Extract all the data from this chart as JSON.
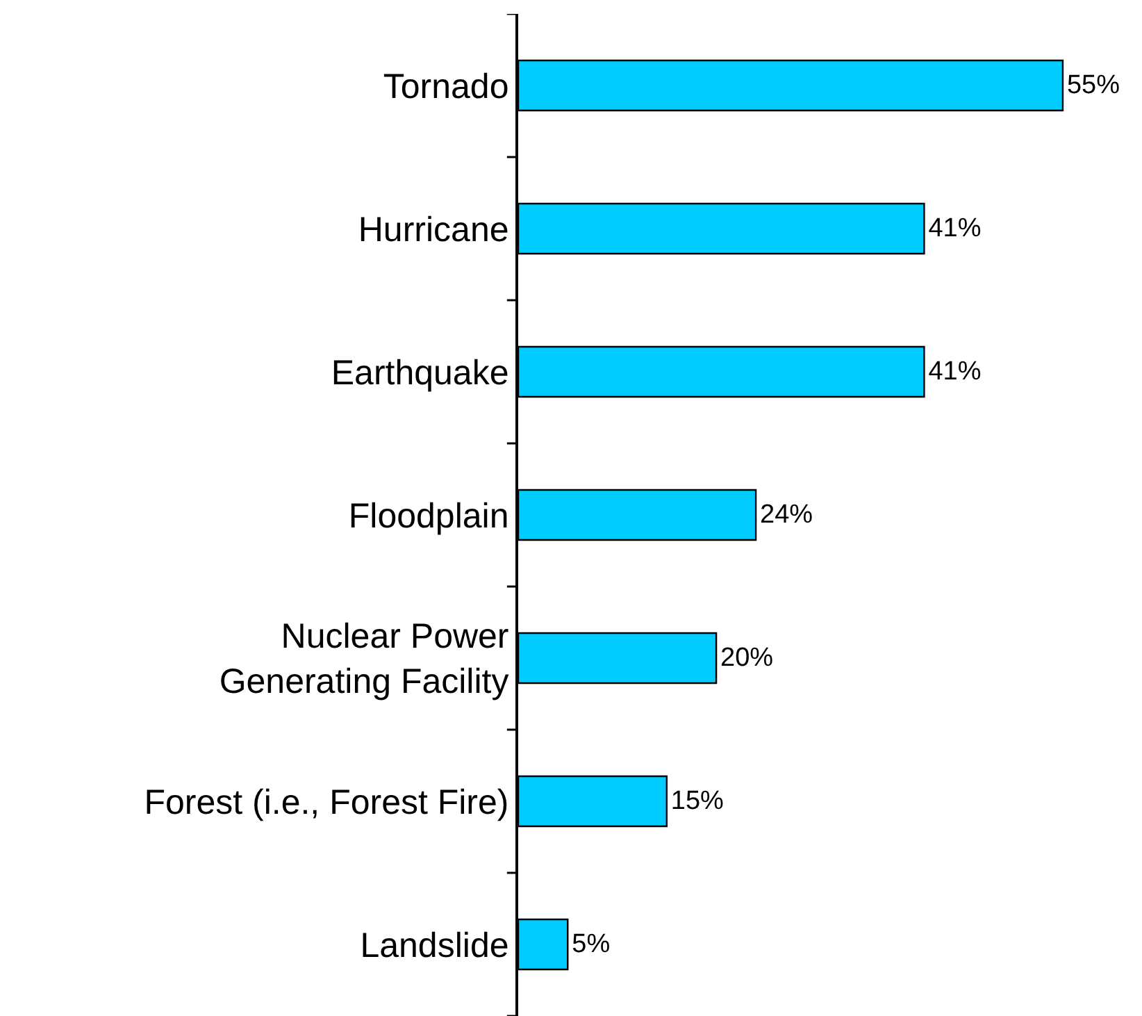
{
  "chart_data": {
    "type": "bar",
    "orientation": "horizontal",
    "categories": [
      "Tornado",
      "Hurricane",
      "Earthquake",
      "Floodplain",
      "Nuclear Power Generating Facility",
      "Forest (i.e., Forest Fire)",
      "Landslide"
    ],
    "values": [
      55,
      41,
      41,
      24,
      20,
      15,
      5
    ],
    "value_labels": [
      "55%",
      "41%",
      "41%",
      "24%",
      "20%",
      "15%",
      "5%"
    ],
    "color": "#00ccff",
    "xlim": [
      0,
      63
    ],
    "tick_labels": "y",
    "legend": false
  }
}
